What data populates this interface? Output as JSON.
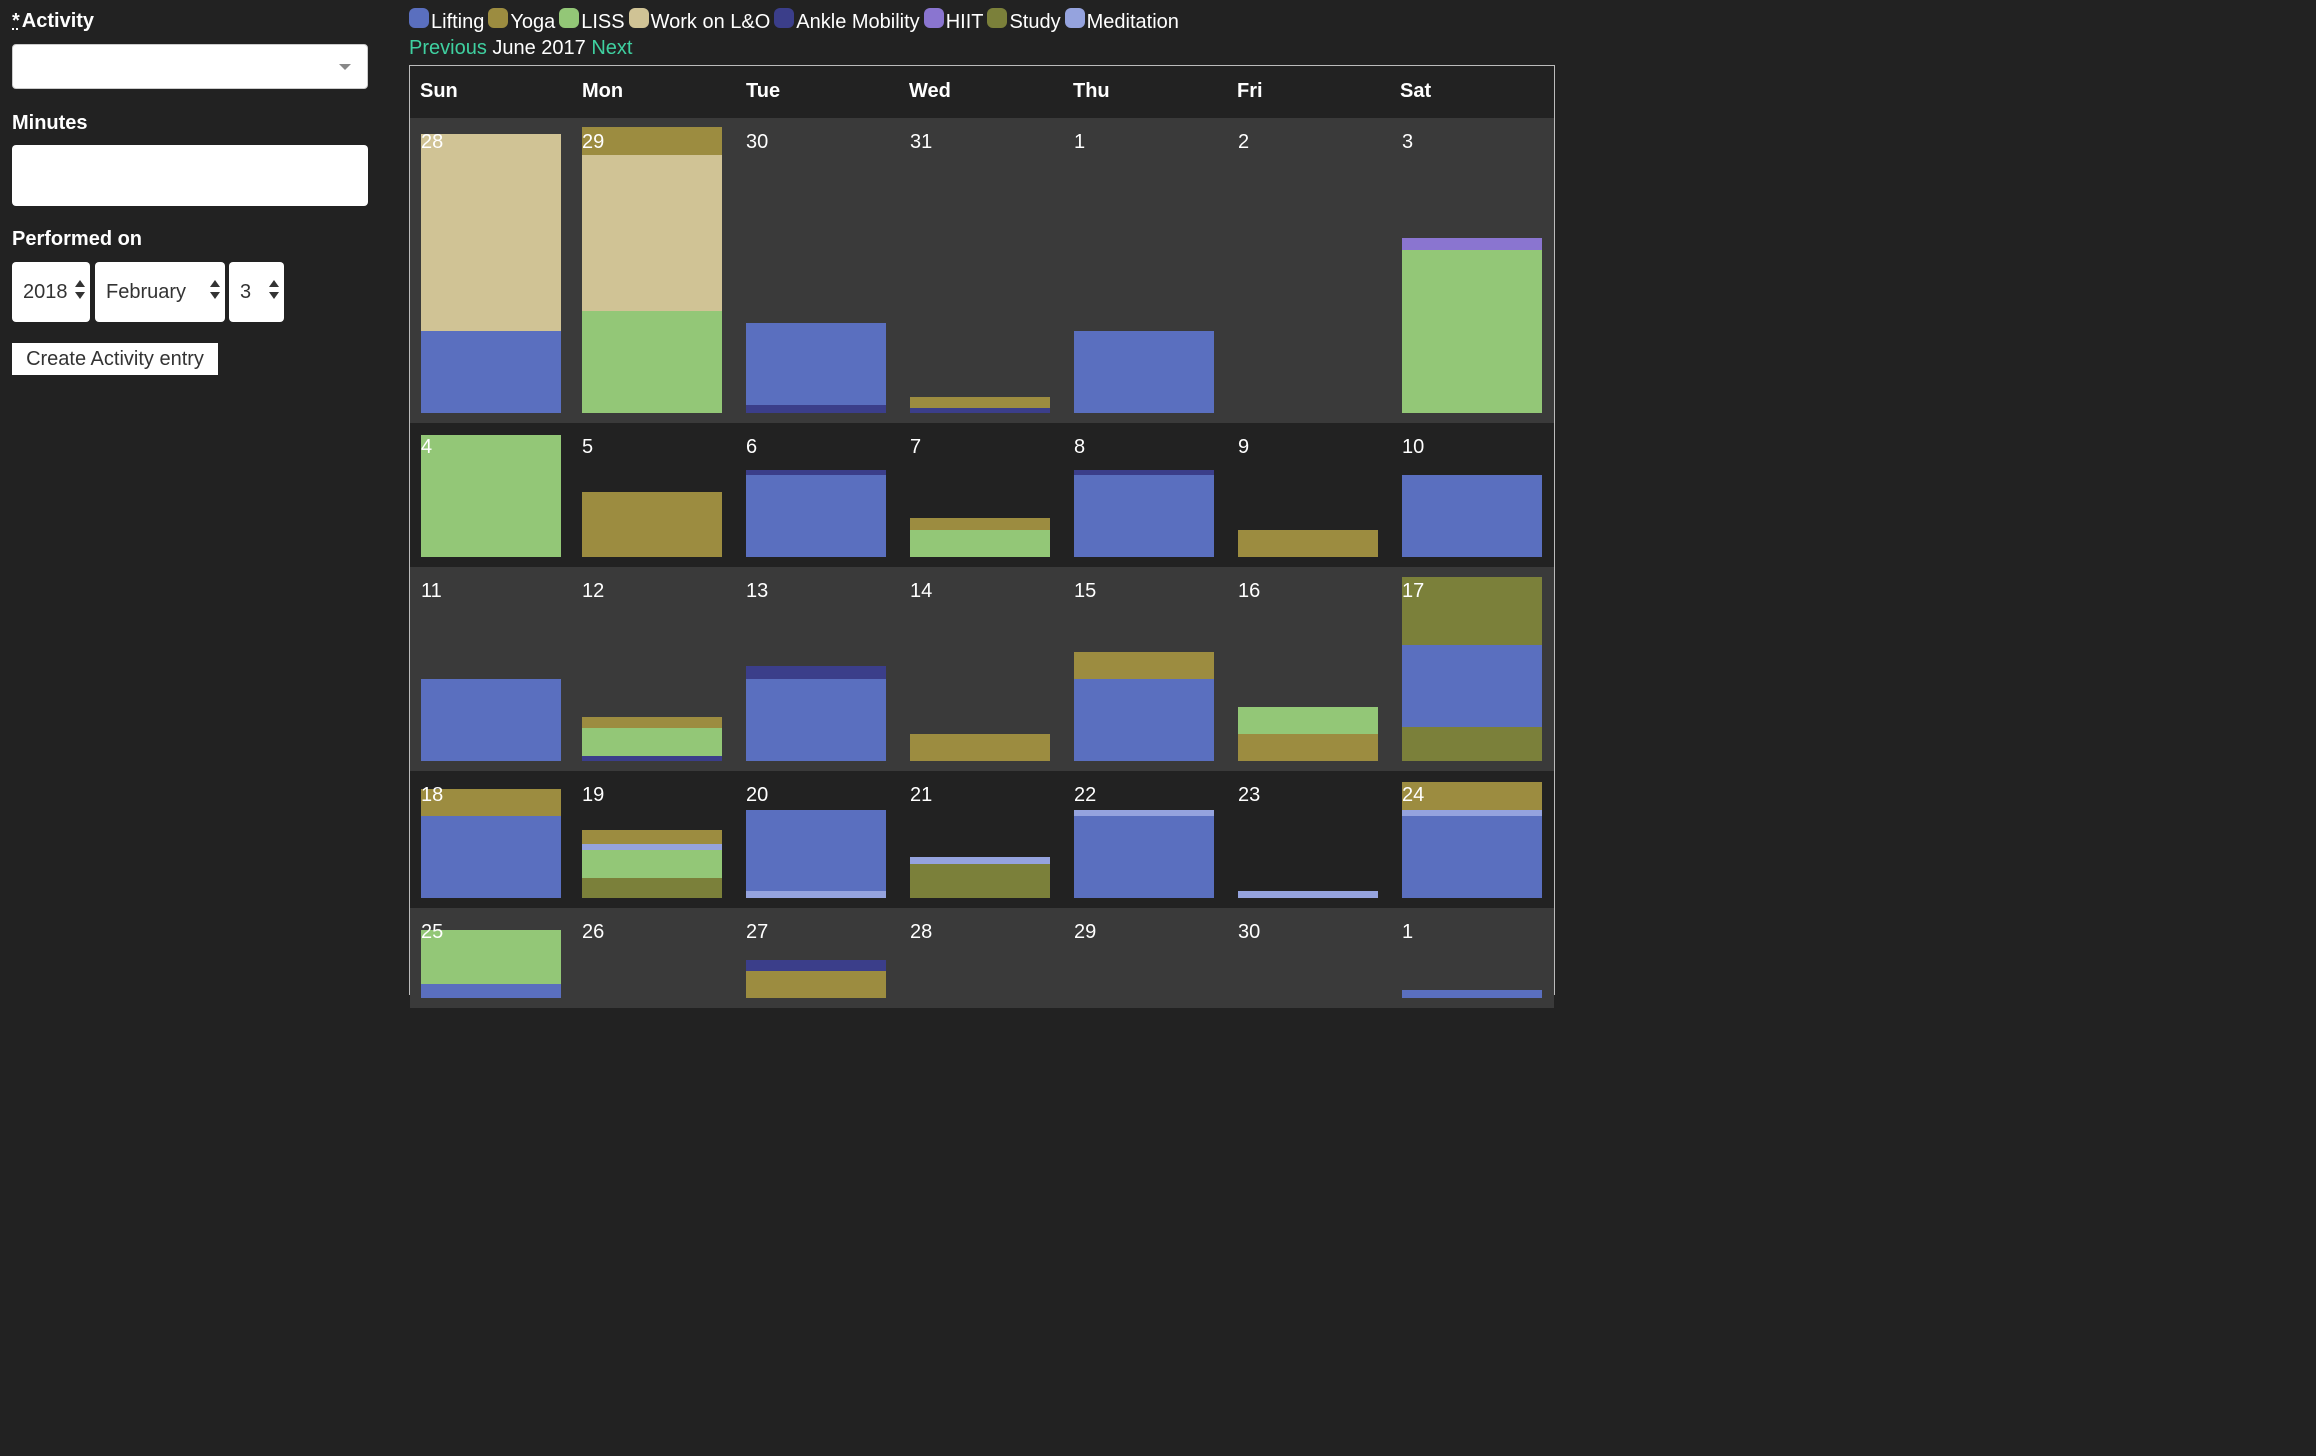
{
  "form": {
    "activity_required_marker": "*",
    "activity_label": "Activity",
    "activity_value": "",
    "minutes_label": "Minutes",
    "minutes_value": "",
    "performed_on_label": "Performed on",
    "year": "2018",
    "month": "February",
    "day": "3",
    "submit_label": "Create Activity entry"
  },
  "legend": [
    {
      "name": "Lifting",
      "color": "#5a6fbf"
    },
    {
      "name": "Yoga",
      "color": "#9c8c40"
    },
    {
      "name": "LISS",
      "color": "#93c777"
    },
    {
      "name": "Work on L&O",
      "color": "#d0c395"
    },
    {
      "name": "Ankle Mobility",
      "color": "#3b3e8a"
    },
    {
      "name": "HIIT",
      "color": "#8a75d0"
    },
    {
      "name": "Study",
      "color": "#7b803a"
    },
    {
      "name": "Meditation",
      "color": "#95a3de"
    }
  ],
  "nav": {
    "previous_label": "Previous",
    "month_title": "June 2017",
    "next_label": "Next"
  },
  "calendar": {
    "weekdays": [
      "Sun",
      "Mon",
      "Tue",
      "Wed",
      "Thu",
      "Fri",
      "Sat"
    ],
    "weeks": [
      [
        {
          "day": "28",
          "segments": [
            {
              "activity": "Lifting",
              "minutes": 60
            },
            {
              "activity": "Work on L&O",
              "minutes": 145
            }
          ]
        },
        {
          "day": "29",
          "segments": [
            {
              "activity": "LISS",
              "minutes": 75
            },
            {
              "activity": "Work on L&O",
              "minutes": 115
            },
            {
              "activity": "Yoga",
              "minutes": 20
            }
          ]
        },
        {
          "day": "30",
          "segments": [
            {
              "activity": "Ankle Mobility",
              "minutes": 6
            },
            {
              "activity": "Lifting",
              "minutes": 60
            }
          ]
        },
        {
          "day": "31",
          "segments": [
            {
              "activity": "Ankle Mobility",
              "minutes": 4
            },
            {
              "activity": "Yoga",
              "minutes": 8
            }
          ]
        },
        {
          "day": "1",
          "segments": [
            {
              "activity": "Lifting",
              "minutes": 60
            }
          ]
        },
        {
          "day": "2",
          "segments": []
        },
        {
          "day": "3",
          "segments": [
            {
              "activity": "LISS",
              "minutes": 120
            },
            {
              "activity": "HIIT",
              "minutes": 9
            }
          ]
        }
      ],
      [
        {
          "day": "4",
          "segments": [
            {
              "activity": "LISS",
              "minutes": 90
            }
          ]
        },
        {
          "day": "5",
          "segments": [
            {
              "activity": "Yoga",
              "minutes": 48
            }
          ]
        },
        {
          "day": "6",
          "segments": [
            {
              "activity": "Lifting",
              "minutes": 60
            },
            {
              "activity": "Ankle Mobility",
              "minutes": 4
            }
          ]
        },
        {
          "day": "7",
          "segments": [
            {
              "activity": "LISS",
              "minutes": 20
            },
            {
              "activity": "Yoga",
              "minutes": 9
            }
          ]
        },
        {
          "day": "8",
          "segments": [
            {
              "activity": "Lifting",
              "minutes": 60
            },
            {
              "activity": "Ankle Mobility",
              "minutes": 4
            }
          ]
        },
        {
          "day": "9",
          "segments": [
            {
              "activity": "Yoga",
              "minutes": 20
            }
          ]
        },
        {
          "day": "10",
          "segments": [
            {
              "activity": "Lifting",
              "minutes": 60
            }
          ]
        }
      ],
      [
        {
          "day": "11",
          "segments": [
            {
              "activity": "Lifting",
              "minutes": 60
            }
          ]
        },
        {
          "day": "12",
          "segments": [
            {
              "activity": "Ankle Mobility",
              "minutes": 4
            },
            {
              "activity": "LISS",
              "minutes": 20
            },
            {
              "activity": "Yoga",
              "minutes": 8
            }
          ]
        },
        {
          "day": "13",
          "segments": [
            {
              "activity": "Lifting",
              "minutes": 60
            },
            {
              "activity": "Ankle Mobility",
              "minutes": 10
            }
          ]
        },
        {
          "day": "14",
          "segments": [
            {
              "activity": "Yoga",
              "minutes": 20
            }
          ]
        },
        {
          "day": "15",
          "segments": [
            {
              "activity": "Lifting",
              "minutes": 60
            },
            {
              "activity": "Yoga",
              "minutes": 20
            }
          ]
        },
        {
          "day": "16",
          "segments": [
            {
              "activity": "Yoga",
              "minutes": 20
            },
            {
              "activity": "LISS",
              "minutes": 20
            }
          ]
        },
        {
          "day": "17",
          "segments": [
            {
              "activity": "Study",
              "minutes": 25
            },
            {
              "activity": "Lifting",
              "minutes": 60
            },
            {
              "activity": "Study",
              "minutes": 50
            }
          ]
        }
      ],
      [
        {
          "day": "18",
          "segments": [
            {
              "activity": "Lifting",
              "minutes": 60
            },
            {
              "activity": "Yoga",
              "minutes": 20
            }
          ]
        },
        {
          "day": "19",
          "segments": [
            {
              "activity": "Study",
              "minutes": 15
            },
            {
              "activity": "LISS",
              "minutes": 20
            },
            {
              "activity": "Meditation",
              "minutes": 5
            },
            {
              "activity": "Yoga",
              "minutes": 10
            }
          ]
        },
        {
          "day": "20",
          "segments": [
            {
              "activity": "Meditation",
              "minutes": 5
            },
            {
              "activity": "Lifting",
              "minutes": 60
            }
          ]
        },
        {
          "day": "21",
          "segments": [
            {
              "activity": "Study",
              "minutes": 25
            },
            {
              "activity": "Meditation",
              "minutes": 5
            }
          ]
        },
        {
          "day": "22",
          "segments": [
            {
              "activity": "Lifting",
              "minutes": 60
            },
            {
              "activity": "Meditation",
              "minutes": 5
            }
          ]
        },
        {
          "day": "23",
          "segments": [
            {
              "activity": "Meditation",
              "minutes": 5
            }
          ]
        },
        {
          "day": "24",
          "segments": [
            {
              "activity": "Lifting",
              "minutes": 60
            },
            {
              "activity": "Meditation",
              "minutes": 5
            },
            {
              "activity": "Yoga",
              "minutes": 20
            }
          ]
        }
      ],
      [
        {
          "day": "25",
          "segments": [
            {
              "activity": "Lifting",
              "minutes": 10
            },
            {
              "activity": "LISS",
              "minutes": 40
            }
          ]
        },
        {
          "day": "26",
          "segments": []
        },
        {
          "day": "27",
          "segments": [
            {
              "activity": "Yoga",
              "minutes": 20
            },
            {
              "activity": "Ankle Mobility",
              "minutes": 8
            }
          ]
        },
        {
          "day": "28",
          "segments": []
        },
        {
          "day": "29",
          "segments": []
        },
        {
          "day": "30",
          "segments": []
        },
        {
          "day": "1",
          "segments": [
            {
              "activity": "Lifting",
              "minutes": 6
            }
          ]
        }
      ]
    ]
  }
}
